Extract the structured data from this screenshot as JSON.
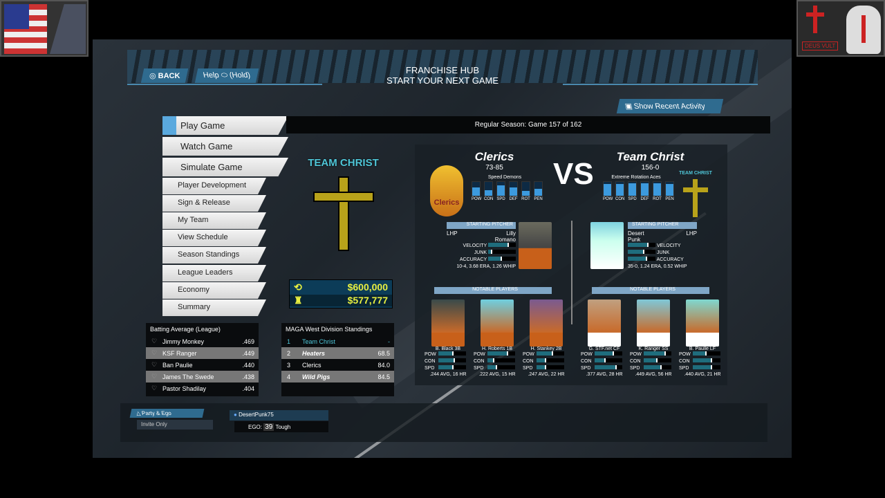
{
  "corner_left": {
    "name": "flag-patch-usmc"
  },
  "corner_right": {
    "text": "DEUS VULT"
  },
  "header": {
    "back": "BACK",
    "help": "Help",
    "help_hold": "(Hold)",
    "title": "FRANCHISE HUB",
    "subtitle": "START YOUR NEXT GAME",
    "recent": "Show Recent Activity"
  },
  "menu": [
    "Play Game",
    "Watch Game",
    "Simulate Game",
    "Player Development",
    "Sign & Release",
    "My Team",
    "View Schedule",
    "Season Standings",
    "League Leaders",
    "Economy",
    "Summary"
  ],
  "season": "Regular Season: Game 157 of 162",
  "team_logo_text": "TEAM CHRIST",
  "money": {
    "budget": "$600,000",
    "payroll": "$577,777",
    "color": "#e8f040"
  },
  "matchup": {
    "vs": "VS",
    "rating_labels": [
      "POW",
      "CON",
      "SPD",
      "DEF",
      "ROT",
      "PEN"
    ],
    "away": {
      "name": "Clerics",
      "record": "73-85",
      "style": "Speed Demons",
      "logo_text": "Clerics",
      "ratings": [
        0.6,
        0.4,
        0.75,
        0.6,
        0.35,
        0.5
      ],
      "pitcher": {
        "header": "STARTING PITCHER",
        "hand": "LHP",
        "first": "Lilly",
        "last": "Romano",
        "stats": "10-4, 3.68 ERA, 1.26 WHIP",
        "velocity": 0.75,
        "junk": 0.15,
        "accuracy": 0.5
      },
      "players": [
        {
          "name": "B. Black",
          "pos": "3B",
          "pow": 0.55,
          "con": 0.6,
          "spd": 0.55,
          "line": ".244 AVG, 16 HR"
        },
        {
          "name": "H. Roberts",
          "pos": "1B",
          "pow": 0.75,
          "con": 0.25,
          "spd": 0.35,
          "line": ".222 AVG, 15 HR"
        },
        {
          "name": "H. Stankey",
          "pos": "2B",
          "pow": 0.6,
          "con": 0.35,
          "spd": 0.35,
          "line": ".247 AVG, 22 HR"
        }
      ]
    },
    "home": {
      "name": "Team Christ",
      "record": "156-0",
      "style": "Extreme Rotation Aces",
      "logo_text": "TEAM CHRIST",
      "ratings": [
        0.85,
        0.85,
        0.9,
        0.9,
        0.9,
        0.85
      ],
      "pitcher": {
        "header": "STARTING PITCHER",
        "hand": "LHP",
        "first": "Desert",
        "last": "Punk",
        "stats": "35-0, 1.24 ERA, 0.52 WHIP",
        "velocity": 0.75,
        "junk": 0.6,
        "accuracy": 0.7
      },
      "players": [
        {
          "name": "G. STF.net",
          "pos": "CF",
          "pow": 0.7,
          "con": 0.4,
          "spd": 0.8,
          "line": ".377 AVG, 28 HR"
        },
        {
          "name": "K. Ranger",
          "pos": "SS",
          "pow": 0.8,
          "con": 0.5,
          "spd": 0.65,
          "line": ".449 AVG, 56 HR"
        },
        {
          "name": "B. Paulle",
          "pos": "LF",
          "pow": 0.5,
          "con": 0.7,
          "spd": 0.7,
          "line": ".440 AVG, 21 HR"
        }
      ]
    },
    "notable": "NOTABLE PLAYERS",
    "pitch_labels": [
      "VELOCITY",
      "JUNK",
      "ACCURACY"
    ],
    "bat_labels": [
      "POW",
      "CON",
      "SPD"
    ]
  },
  "leaders": {
    "title": "Batting Average (League)",
    "rows": [
      {
        "name": "Jimmy Monkey",
        "val": ".469"
      },
      {
        "name": "KSF Ranger",
        "val": ".449"
      },
      {
        "name": "Ban Paulie",
        "val": ".440"
      },
      {
        "name": "James The Swede",
        "val": ".438"
      },
      {
        "name": "Pastor Shadilay",
        "val": ".404"
      }
    ]
  },
  "standings": {
    "title": "MAGA West Division Standings",
    "rows": [
      {
        "rank": "1",
        "team": "Team Christ",
        "gb": "-"
      },
      {
        "rank": "2",
        "team": "Heaters",
        "gb": "68.5"
      },
      {
        "rank": "3",
        "team": "Clerics",
        "gb": "84.0"
      },
      {
        "rank": "4",
        "team": "Wild Pigs",
        "gb": "84.5"
      }
    ]
  },
  "party": {
    "label": "Party & Ego",
    "privacy": "Invite Only",
    "user": "DesertPunk75",
    "ego_label": "EGO:",
    "ego": "39",
    "ego_desc": "Tough"
  }
}
